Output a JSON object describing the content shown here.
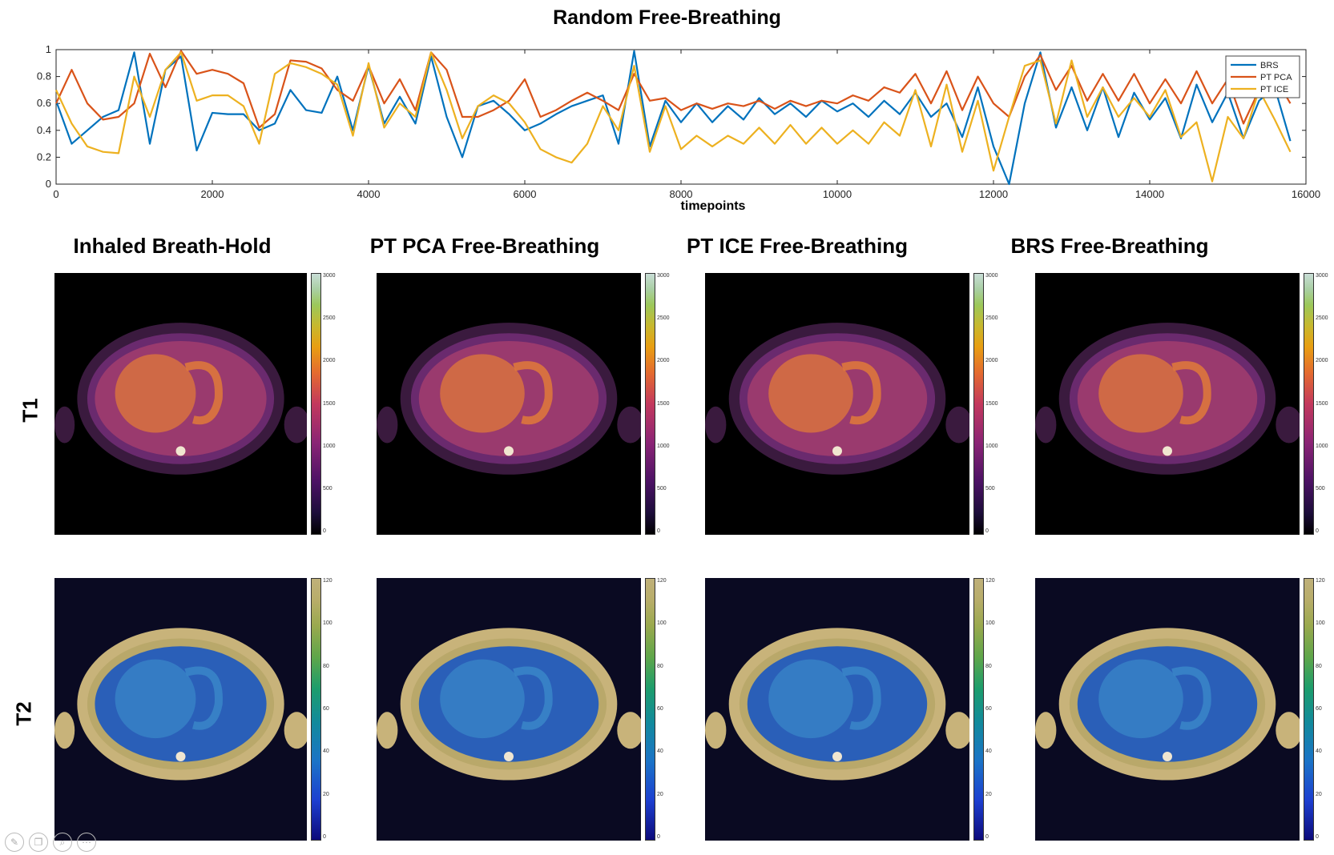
{
  "figure": {
    "title": "Random Free-Breathing",
    "column_titles": [
      "Inhaled Breath-Hold",
      "PT PCA Free-Breathing",
      "PT ICE Free-Breathing",
      "BRS Free-Breathing"
    ],
    "row_labels": [
      "T1",
      "T2"
    ],
    "t1_colorbar_ticks": [
      "3000",
      "2500",
      "2000",
      "1500",
      "1000",
      "500",
      "0"
    ],
    "t2_colorbar_ticks": [
      "120",
      "100",
      "80",
      "60",
      "40",
      "20",
      "0"
    ]
  },
  "chart_data": {
    "type": "line",
    "title": "Random Free-Breathing",
    "xlabel": "timepoints",
    "ylabel": "",
    "xlim": [
      0,
      16000
    ],
    "ylim": [
      0,
      1
    ],
    "x_ticks": [
      "0",
      "2000",
      "4000",
      "6000",
      "8000",
      "10000",
      "12000",
      "14000",
      "16000"
    ],
    "y_ticks": [
      "0",
      "0.2",
      "0.4",
      "0.6",
      "0.8",
      "1"
    ],
    "legend_position": "top-right",
    "x": [
      0,
      200,
      400,
      600,
      800,
      1000,
      1200,
      1400,
      1600,
      1800,
      2000,
      2200,
      2400,
      2600,
      2800,
      3000,
      3200,
      3400,
      3600,
      3800,
      4000,
      4200,
      4400,
      4600,
      4800,
      5000,
      5200,
      5400,
      5600,
      5800,
      6000,
      6200,
      6400,
      6600,
      6800,
      7000,
      7200,
      7400,
      7600,
      7800,
      8000,
      8200,
      8400,
      8600,
      8800,
      9000,
      9200,
      9400,
      9600,
      9800,
      10000,
      10200,
      10400,
      10600,
      10800,
      11000,
      11200,
      11400,
      11600,
      11800,
      12000,
      12200,
      12400,
      12600,
      12800,
      13000,
      13200,
      13400,
      13600,
      13800,
      14000,
      14200,
      14400,
      14600,
      14800,
      15000,
      15200,
      15400,
      15600,
      15800
    ],
    "series": [
      {
        "name": "BRS",
        "color": "#0072bd",
        "values": [
          0.62,
          0.3,
          0.4,
          0.5,
          0.55,
          0.98,
          0.3,
          0.85,
          0.95,
          0.25,
          0.53,
          0.52,
          0.52,
          0.4,
          0.45,
          0.7,
          0.55,
          0.53,
          0.8,
          0.4,
          0.88,
          0.45,
          0.65,
          0.45,
          0.95,
          0.5,
          0.2,
          0.58,
          0.62,
          0.52,
          0.4,
          0.45,
          0.52,
          0.58,
          0.62,
          0.66,
          0.3,
          0.99,
          0.28,
          0.62,
          0.46,
          0.6,
          0.46,
          0.58,
          0.48,
          0.64,
          0.52,
          0.6,
          0.5,
          0.62,
          0.54,
          0.6,
          0.5,
          0.62,
          0.52,
          0.68,
          0.5,
          0.6,
          0.35,
          0.72,
          0.28,
          0.0,
          0.6,
          0.98,
          0.42,
          0.72,
          0.4,
          0.72,
          0.35,
          0.68,
          0.48,
          0.64,
          0.34,
          0.74,
          0.46,
          0.68,
          0.34,
          0.62,
          0.72,
          0.32
        ]
      },
      {
        "name": "PT PCA",
        "color": "#d95319",
        "values": [
          0.6,
          0.85,
          0.6,
          0.48,
          0.5,
          0.6,
          0.97,
          0.72,
          0.99,
          0.82,
          0.85,
          0.82,
          0.75,
          0.42,
          0.52,
          0.92,
          0.91,
          0.86,
          0.7,
          0.62,
          0.88,
          0.6,
          0.78,
          0.55,
          0.98,
          0.85,
          0.5,
          0.5,
          0.55,
          0.62,
          0.78,
          0.5,
          0.55,
          0.62,
          0.68,
          0.62,
          0.55,
          0.82,
          0.62,
          0.64,
          0.55,
          0.6,
          0.56,
          0.6,
          0.58,
          0.62,
          0.56,
          0.62,
          0.58,
          0.62,
          0.6,
          0.66,
          0.62,
          0.72,
          0.68,
          0.82,
          0.6,
          0.84,
          0.55,
          0.8,
          0.6,
          0.5,
          0.8,
          0.96,
          0.7,
          0.88,
          0.62,
          0.82,
          0.62,
          0.82,
          0.6,
          0.78,
          0.6,
          0.84,
          0.6,
          0.78,
          0.45,
          0.7,
          0.8,
          0.6
        ]
      },
      {
        "name": "PT ICE",
        "color": "#edb120",
        "values": [
          0.7,
          0.45,
          0.28,
          0.24,
          0.23,
          0.8,
          0.5,
          0.85,
          0.98,
          0.62,
          0.66,
          0.66,
          0.58,
          0.3,
          0.82,
          0.9,
          0.87,
          0.82,
          0.74,
          0.36,
          0.9,
          0.42,
          0.6,
          0.5,
          0.98,
          0.7,
          0.34,
          0.58,
          0.66,
          0.6,
          0.46,
          0.26,
          0.2,
          0.16,
          0.3,
          0.58,
          0.4,
          0.88,
          0.24,
          0.58,
          0.26,
          0.36,
          0.28,
          0.36,
          0.3,
          0.42,
          0.3,
          0.44,
          0.3,
          0.42,
          0.3,
          0.4,
          0.3,
          0.46,
          0.36,
          0.7,
          0.28,
          0.74,
          0.24,
          0.62,
          0.1,
          0.5,
          0.88,
          0.92,
          0.45,
          0.92,
          0.5,
          0.72,
          0.5,
          0.64,
          0.5,
          0.7,
          0.35,
          0.46,
          0.02,
          0.5,
          0.34,
          0.7,
          0.48,
          0.24
        ]
      }
    ]
  }
}
